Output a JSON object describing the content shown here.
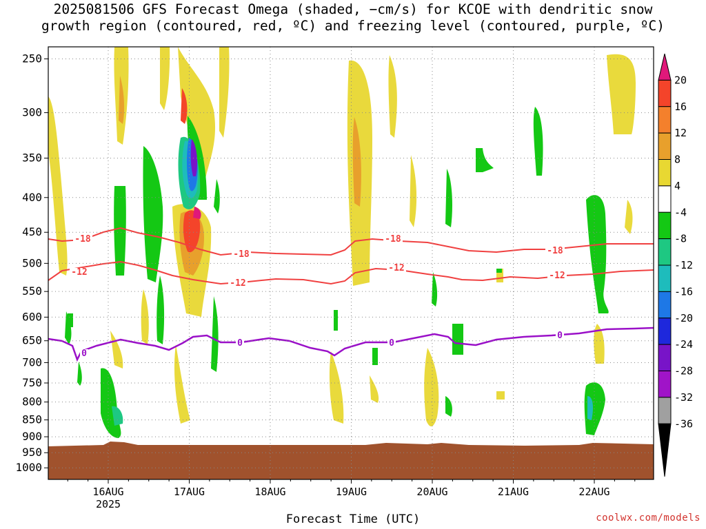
{
  "chart_data": {
    "type": "heatmap",
    "title": [
      "2025081506 GFS Forecast Omega (shaded, −cm/s) for KCOE with dendritic snow",
      "growth region (contoured, red, ºC) and freezing level (contoured, purple, ºC)"
    ],
    "xlabel": "Forecast Time (UTC)",
    "ylabel": "",
    "x_tick_labels": [
      "16AUG",
      "17AUG",
      "18AUG",
      "19AUG",
      "20AUG",
      "21AUG",
      "22AUG"
    ],
    "x_year_label": "2025",
    "y_tick_labels": [
      "250",
      "300",
      "350",
      "400",
      "450",
      "500",
      "550",
      "600",
      "650",
      "700",
      "750",
      "800",
      "850",
      "900",
      "950",
      "1000"
    ],
    "y_scale": "log-pressure, inverted",
    "grid": true,
    "colorbar": {
      "labels": [
        "20",
        "16",
        "12",
        "8",
        "4",
        "-4",
        "-8",
        "-12",
        "-16",
        "-20",
        "-24",
        "-28",
        "-32",
        "-36"
      ],
      "colors": [
        "#e0187a",
        "#f4442a",
        "#f4802c",
        "#e8a02c",
        "#e8d832",
        "#ffffff",
        "#14c814",
        "#1ec882",
        "#1ebcbc",
        "#1e78e6",
        "#1e28dc",
        "#7814c8",
        "#a014c8",
        "#a0a0a0",
        "#000000"
      ]
    },
    "contour_labels": {
      "red": [
        "-18",
        "-12",
        "-18",
        "-12",
        "-18",
        "-12",
        "-18",
        "-12"
      ],
      "purple": [
        "0",
        "0",
        "0",
        "0"
      ]
    },
    "colors": {
      "dgz": "#f04040",
      "freezing": "#9a10c8",
      "ground": "#a0522d"
    },
    "watermark": "coolwx.com/models"
  }
}
